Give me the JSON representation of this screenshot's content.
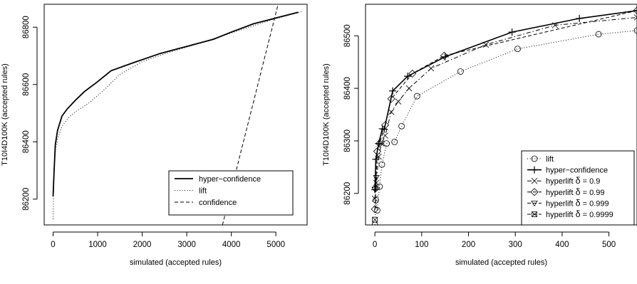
{
  "chart_data": [
    {
      "type": "line",
      "xlabel": "simulated (accepted rules)",
      "ylabel": "T10I4D100K (accepted rules)",
      "xlim": [
        -200,
        5700
      ],
      "ylim": [
        86110,
        86880
      ],
      "x_ticks": [
        0,
        1000,
        2000,
        3000,
        4000,
        5000
      ],
      "y_ticks": [
        86200,
        86400,
        86600,
        86800
      ],
      "legend_position": "bottom-right",
      "series": [
        {
          "name": "hyper−confidence",
          "line": "solid",
          "width": 1.8,
          "x": [
            0,
            20,
            50,
            100,
            200,
            320,
            500,
            700,
            1000,
            1300,
            1800,
            2400,
            3000,
            3600,
            4000,
            4500,
            5000,
            5500
          ],
          "y": [
            86210,
            86290,
            86390,
            86440,
            86490,
            86515,
            86545,
            86575,
            86610,
            86648,
            86676,
            86708,
            86733,
            86758,
            86783,
            86812,
            86832,
            86852
          ]
        },
        {
          "name": "lift",
          "line": "dotted",
          "width": 1,
          "x": [
            0,
            10,
            30,
            60,
            100,
            200,
            350,
            500,
            800,
            1100,
            1500,
            2000,
            2600,
            3200,
            3800,
            4400,
            5000,
            5600
          ],
          "y": [
            86130,
            86220,
            86330,
            86380,
            86410,
            86455,
            86485,
            86505,
            86535,
            86575,
            86635,
            86680,
            86712,
            86740,
            86770,
            86800,
            86830,
            86855
          ]
        },
        {
          "name": "confidence",
          "line": "dashed",
          "width": 1,
          "x": [
            3800,
            5050
          ],
          "y": [
            86110,
            86880
          ]
        }
      ]
    },
    {
      "type": "line",
      "xlabel": "simulated (accepted rules)",
      "ylabel": "T10I4D100K (accepted rules)",
      "xlim": [
        -20,
        560
      ],
      "ylim": [
        86140,
        86560
      ],
      "x_ticks": [
        0,
        100,
        200,
        300,
        400,
        500
      ],
      "y_ticks": [
        86200,
        86300,
        86400,
        86500
      ],
      "legend_position": "bottom-right",
      "series": [
        {
          "name": "lift",
          "line": "dotted",
          "marker": "circle",
          "width": 1,
          "x": [
            0,
            2,
            5,
            10,
            15,
            25,
            42,
            57,
            90,
            183,
            305,
            478,
            560
          ],
          "y": [
            86140,
            86187,
            86168,
            86213,
            86255,
            86295,
            86298,
            86328,
            86385,
            86432,
            86475,
            86503,
            86510
          ]
        },
        {
          "name": "hyper−confidence",
          "line": "solid",
          "marker": "plus",
          "width": 1.6,
          "x": [
            0,
            2,
            8,
            16,
            20,
            38,
            70,
            150,
            293,
            437,
            560
          ],
          "y": [
            86207,
            86265,
            86295,
            86323,
            86322,
            86395,
            86423,
            86460,
            86507,
            86533,
            86548
          ]
        },
        {
          "name": "hyperlift δ = 0.9",
          "line": "dashdot",
          "marker": "x",
          "width": 1,
          "x": [
            0,
            3,
            8,
            14,
            22,
            35,
            50,
            73,
            120,
            237,
            385,
            560
          ],
          "y": [
            86190,
            86220,
            86270,
            86295,
            86310,
            86355,
            86375,
            86400,
            86438,
            86483,
            86520,
            86535
          ]
        },
        {
          "name": "hyperlift δ = 0.99",
          "line": "dashed",
          "marker": "diamond",
          "width": 1,
          "x": [
            0,
            2,
            5,
            10,
            22,
            35,
            80,
            148,
            560
          ],
          "y": [
            86170,
            86210,
            86280,
            86295,
            86330,
            86380,
            86428,
            86462,
            86548
          ]
        },
        {
          "name": "hyperlift δ = 0.999",
          "line": "dashed",
          "marker": "triangle-down",
          "width": 1,
          "x": [
            0,
            3
          ],
          "y": [
            86208,
            86230
          ]
        },
        {
          "name": "hyperlift δ = 0.9999",
          "line": "dashed",
          "marker": "square-x",
          "width": 1,
          "x": [
            0
          ],
          "y": [
            86150
          ]
        }
      ]
    }
  ]
}
